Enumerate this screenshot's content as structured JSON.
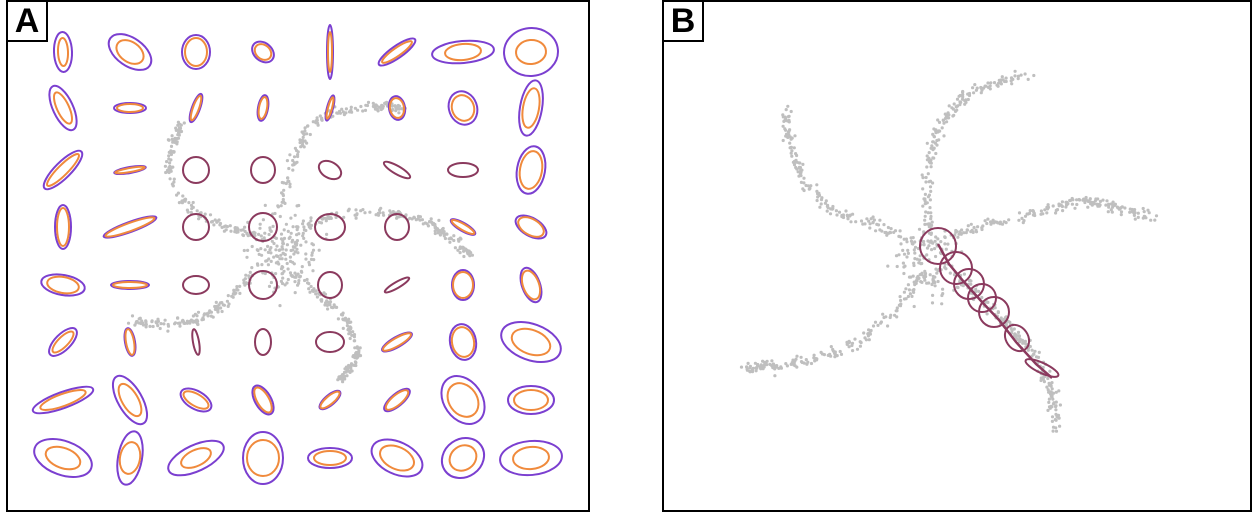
{
  "panels": [
    {
      "id": "A",
      "label": "A"
    },
    {
      "id": "B",
      "label": "B"
    }
  ],
  "colors": {
    "points": "#bfbfbf",
    "outer_ellipse": "#7b3fd0",
    "inner_ellipse": "#f08a3c",
    "data_ellipse": "#8b3a5e"
  }
}
